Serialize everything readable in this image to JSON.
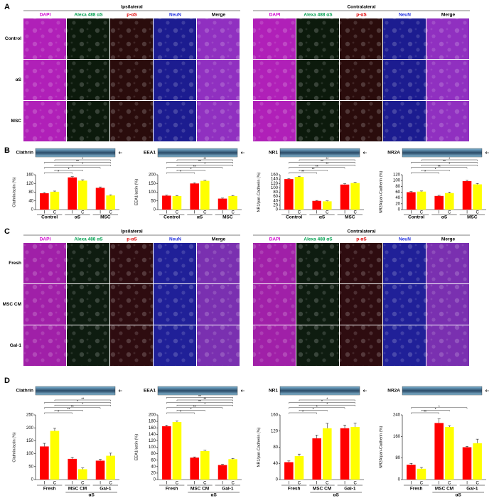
{
  "figure": {
    "panel_A": {
      "label": "A",
      "sides": [
        "Ipsilateral",
        "Contralateral"
      ],
      "channels": [
        {
          "name": "DAPI",
          "color": "#d000d0",
          "tint": "#b020b8"
        },
        {
          "name": "Alexa 488 αS",
          "color": "#00a050",
          "tint": "#0c1a0c"
        },
        {
          "name": "p-αS",
          "color": "#e00000",
          "tint": "#2a0c0c"
        },
        {
          "name": "NeuN",
          "color": "#2030e0",
          "tint": "#1c1c90"
        },
        {
          "name": "Merge",
          "color": "#000000",
          "tint": "#9030c0"
        }
      ],
      "rows": [
        "Control",
        "αS",
        "MSC"
      ]
    },
    "panel_B": {
      "label": "B"
    },
    "panel_C": {
      "label": "C",
      "sides": [
        "Ipsilateral",
        "Contralateral"
      ],
      "channels": [
        {
          "name": "DAPI",
          "color": "#d000d0",
          "tint": "#a020a8"
        },
        {
          "name": "Alexa 488 αS",
          "color": "#00a050",
          "tint": "#0e1c10"
        },
        {
          "name": "p-αS",
          "color": "#e00000",
          "tint": "#2e0c10"
        },
        {
          "name": "NeuN",
          "color": "#2030e0",
          "tint": "#202098"
        },
        {
          "name": "Merge",
          "color": "#000000",
          "tint": "#7a30b0"
        }
      ],
      "rows": [
        "Fresh",
        "MSC CM",
        "Gal-1"
      ]
    },
    "panel_D": {
      "label": "D"
    }
  },
  "chart_data": [
    {
      "type": "bar",
      "title": "Clathrin",
      "ylabel": "Clathrin/actin (%)",
      "categories": [
        "Control",
        "αS",
        "MSC"
      ],
      "series": [
        {
          "name": "I",
          "color": "#ff0000",
          "values": [
            75,
            148,
            100
          ],
          "errors": [
            3,
            3,
            4
          ]
        },
        {
          "name": "C",
          "color": "#ffff00",
          "values": [
            82,
            133,
            65
          ],
          "errors": [
            3,
            4,
            3
          ]
        }
      ],
      "ylim": [
        0,
        160
      ],
      "yticks": [
        0,
        40,
        80,
        120,
        160
      ],
      "significance": [
        "*",
        "*",
        "*",
        "*",
        "**",
        "*"
      ]
    },
    {
      "type": "bar",
      "title": "EEA1",
      "ylabel": "EEA1/actin (%)",
      "categories": [
        "Control",
        "αS",
        "MSC"
      ],
      "series": [
        {
          "name": "I",
          "color": "#ff0000",
          "values": [
            80,
            150,
            63
          ],
          "errors": [
            3,
            4,
            3
          ]
        },
        {
          "name": "C",
          "color": "#ffff00",
          "values": [
            78,
            165,
            78
          ],
          "errors": [
            3,
            4,
            3
          ]
        }
      ],
      "ylim": [
        0,
        200
      ],
      "yticks": [
        0,
        50,
        100,
        150,
        200
      ],
      "significance": [
        "*",
        "*",
        "**",
        "*",
        "**",
        "**"
      ]
    },
    {
      "type": "bar",
      "title": "NR1",
      "ylabel": "NR1/pan-Cadherin (%)",
      "categories": [
        "Control",
        "αS",
        "MSC"
      ],
      "series": [
        {
          "name": "I",
          "color": "#ff0000",
          "values": [
            140,
            40,
            115
          ],
          "errors": [
            3,
            2,
            4
          ]
        },
        {
          "name": "C",
          "color": "#ffff00",
          "values": [
            150,
            38,
            122
          ],
          "errors": [
            3,
            2,
            3
          ]
        }
      ],
      "ylim": [
        0,
        160
      ],
      "yticks": [
        0,
        20,
        40,
        60,
        80,
        100,
        120,
        140,
        160
      ],
      "significance": [
        "**",
        "**",
        "**",
        "**",
        "**",
        "**"
      ]
    },
    {
      "type": "bar",
      "title": "NR2A",
      "ylabel": "NR2A/pan-Cadherin (%)",
      "categories": [
        "Control",
        "αS",
        "MSC"
      ],
      "series": [
        {
          "name": "I",
          "color": "#ff0000",
          "values": [
            60,
            47,
            98
          ],
          "errors": [
            2,
            2,
            3
          ]
        },
        {
          "name": "C",
          "color": "#ffff00",
          "values": [
            62,
            57,
            87
          ],
          "errors": [
            2,
            3,
            3
          ]
        }
      ],
      "ylim": [
        0,
        120
      ],
      "yticks": [
        0,
        20,
        40,
        60,
        80,
        100,
        120
      ],
      "significance": [
        "*",
        "*",
        "**",
        "*",
        "**",
        "*"
      ]
    },
    {
      "type": "bar",
      "title": "Clathrin",
      "ylabel": "Clathrin/actin (%)",
      "categories": [
        "Fresh",
        "MSC CM",
        "Gal-1"
      ],
      "group_label": "αS",
      "series": [
        {
          "name": "I",
          "color": "#ff0000",
          "values": [
            128,
            80,
            73
          ],
          "errors": [
            12,
            6,
            5
          ]
        },
        {
          "name": "C",
          "color": "#ffff00",
          "values": [
            188,
            40,
            92
          ],
          "errors": [
            10,
            5,
            10
          ]
        }
      ],
      "ylim": [
        0,
        250
      ],
      "yticks": [
        0,
        50,
        100,
        150,
        200,
        250
      ],
      "significance": [
        "*",
        "**",
        "**",
        "*",
        "*",
        "**"
      ]
    },
    {
      "type": "bar",
      "title": "EEA1",
      "ylabel": "EEA1/actin (%)",
      "categories": [
        "Fresh",
        "MSC CM",
        "Gal-1"
      ],
      "group_label": "αS",
      "series": [
        {
          "name": "I",
          "color": "#ff0000",
          "values": [
            165,
            68,
            45
          ],
          "errors": [
            3,
            2,
            2
          ]
        },
        {
          "name": "C",
          "color": "#ffff00",
          "values": [
            178,
            88,
            63
          ],
          "errors": [
            3,
            3,
            2
          ]
        }
      ],
      "ylim": [
        0,
        200
      ],
      "yticks": [
        0,
        20,
        40,
        60,
        80,
        100,
        120,
        140,
        160,
        180,
        200
      ],
      "significance": [
        "*",
        "*",
        "**",
        "*",
        "**",
        "**",
        "**"
      ]
    },
    {
      "type": "bar",
      "title": "NR1",
      "ylabel": "NR1/pan-Cadherin (%)",
      "categories": [
        "Fresh",
        "MSC CM",
        "Gal-1"
      ],
      "group_label": "αS",
      "series": [
        {
          "name": "I",
          "color": "#ff0000",
          "values": [
            43,
            102,
            127
          ],
          "errors": [
            3,
            8,
            8
          ]
        },
        {
          "name": "C",
          "color": "#ffff00",
          "values": [
            58,
            127,
            130
          ],
          "errors": [
            5,
            12,
            10
          ]
        }
      ],
      "ylim": [
        0,
        160
      ],
      "yticks": [
        0,
        40,
        80,
        120,
        160
      ],
      "significance": [
        "*",
        "*",
        "*",
        "*",
        "*",
        "*"
      ]
    },
    {
      "type": "bar",
      "title": "NR2A",
      "ylabel": "NR2A/pan-Cadherin (%)",
      "categories": [
        "Fresh",
        "MSC CM",
        "Gal-1"
      ],
      "group_label": "αS",
      "series": [
        {
          "name": "I",
          "color": "#ff0000",
          "values": [
            55,
            210,
            120
          ],
          "errors": [
            5,
            15,
            3
          ]
        },
        {
          "name": "C",
          "color": "#ffff00",
          "values": [
            40,
            195,
            135
          ],
          "errors": [
            5,
            5,
            15
          ]
        }
      ],
      "ylim": [
        0,
        240
      ],
      "yticks": [
        0,
        80,
        160,
        240
      ],
      "significance": [
        "**",
        "*",
        "*"
      ]
    }
  ]
}
